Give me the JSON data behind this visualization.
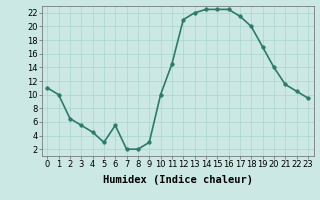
{
  "x": [
    0,
    1,
    2,
    3,
    4,
    5,
    6,
    7,
    8,
    9,
    10,
    11,
    12,
    13,
    14,
    15,
    16,
    17,
    18,
    19,
    20,
    21,
    22,
    23
  ],
  "y": [
    11,
    10,
    6.5,
    5.5,
    4.5,
    3,
    5.5,
    2,
    2,
    3,
    10,
    14.5,
    21,
    22,
    22.5,
    22.5,
    22.5,
    21.5,
    20,
    17,
    14,
    11.5,
    10.5,
    9.5
  ],
  "line_color": "#2d7a6a",
  "marker_color": "#2d7a6a",
  "bg_color": "#cce8e4",
  "grid_color": "#aad4cf",
  "xlabel": "Humidex (Indice chaleur)",
  "xlim": [
    -0.5,
    23.5
  ],
  "ylim": [
    1,
    23
  ],
  "yticks": [
    2,
    4,
    6,
    8,
    10,
    12,
    14,
    16,
    18,
    20,
    22
  ],
  "xticks": [
    0,
    1,
    2,
    3,
    4,
    5,
    6,
    7,
    8,
    9,
    10,
    11,
    12,
    13,
    14,
    15,
    16,
    17,
    18,
    19,
    20,
    21,
    22,
    23
  ],
  "xlabel_fontsize": 7.5,
  "tick_fontsize": 6,
  "line_width": 1.2,
  "marker_size": 2.5
}
